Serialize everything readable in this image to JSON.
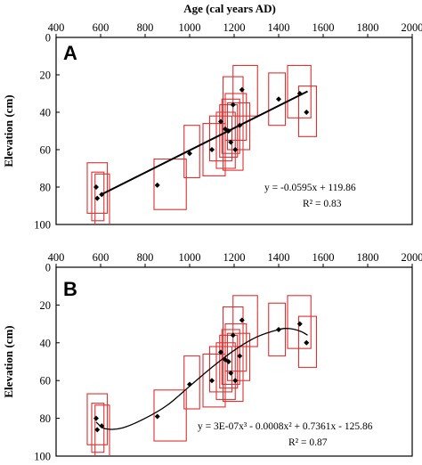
{
  "figure": {
    "top_axis_title": "Age (cal years AD)",
    "y_axis_title": "Elevation (cm)"
  },
  "chart_data": [
    {
      "type": "scatter",
      "panel_label": "A",
      "xlim": [
        400,
        2000
      ],
      "ylim": [
        0,
        100
      ],
      "y_inverted": true,
      "x_ticks": [
        "400",
        "600",
        "800",
        "1000",
        "1200",
        "1400",
        "1600",
        "1800",
        "2000"
      ],
      "y_ticks": [
        "0",
        "20",
        "40",
        "60",
        "80",
        "100"
      ],
      "x_axis_position": "top",
      "points": [
        {
          "x": 580,
          "y": 80
        },
        {
          "x": 585,
          "y": 86
        },
        {
          "x": 605,
          "y": 84
        },
        {
          "x": 855,
          "y": 79
        },
        {
          "x": 1000,
          "y": 62
        },
        {
          "x": 1100,
          "y": 60
        },
        {
          "x": 1140,
          "y": 45
        },
        {
          "x": 1160,
          "y": 49
        },
        {
          "x": 1175,
          "y": 50
        },
        {
          "x": 1185,
          "y": 56
        },
        {
          "x": 1195,
          "y": 36
        },
        {
          "x": 1205,
          "y": 60
        },
        {
          "x": 1225,
          "y": 47
        },
        {
          "x": 1235,
          "y": 28
        },
        {
          "x": 1400,
          "y": 33
        },
        {
          "x": 1495,
          "y": 30
        },
        {
          "x": 1525,
          "y": 40
        }
      ],
      "error_boxes": [
        {
          "x0": 540,
          "x1": 630,
          "y0": 67,
          "y1": 94
        },
        {
          "x0": 560,
          "x1": 615,
          "y0": 72,
          "y1": 98
        },
        {
          "x0": 575,
          "x1": 640,
          "y0": 73,
          "y1": 101
        },
        {
          "x0": 840,
          "x1": 985,
          "y0": 65,
          "y1": 92
        },
        {
          "x0": 975,
          "x1": 1045,
          "y0": 47,
          "y1": 75
        },
        {
          "x0": 1060,
          "x1": 1160,
          "y0": 46,
          "y1": 74
        },
        {
          "x0": 1090,
          "x1": 1190,
          "y0": 42,
          "y1": 66
        },
        {
          "x0": 1120,
          "x1": 1205,
          "y0": 40,
          "y1": 70
        },
        {
          "x0": 1135,
          "x1": 1215,
          "y0": 36,
          "y1": 64
        },
        {
          "x0": 1145,
          "x1": 1225,
          "y0": 33,
          "y1": 62
        },
        {
          "x0": 1150,
          "x1": 1240,
          "y0": 21,
          "y1": 71
        },
        {
          "x0": 1160,
          "x1": 1255,
          "y0": 30,
          "y1": 55
        },
        {
          "x0": 1170,
          "x1": 1270,
          "y0": 35,
          "y1": 60
        },
        {
          "x0": 1195,
          "x1": 1305,
          "y0": 15,
          "y1": 42
        },
        {
          "x0": 1355,
          "x1": 1430,
          "y0": 19,
          "y1": 47
        },
        {
          "x0": 1440,
          "x1": 1545,
          "y0": 15,
          "y1": 43
        },
        {
          "x0": 1490,
          "x1": 1570,
          "y0": 26,
          "y1": 53
        }
      ],
      "fit": {
        "type": "linear",
        "slope": -0.0595,
        "intercept": 119.86,
        "x_range": [
          600,
          1530
        ],
        "equation_label": "y = -0.0595x + 119.86",
        "r2_label": "R² = 0.83"
      }
    },
    {
      "type": "scatter",
      "panel_label": "B",
      "xlim": [
        400,
        2000
      ],
      "ylim": [
        0,
        100
      ],
      "y_inverted": true,
      "x_ticks": [
        "400",
        "600",
        "800",
        "1000",
        "1200",
        "1400",
        "1600",
        "1800",
        "2000"
      ],
      "y_ticks": [
        "0",
        "20",
        "40",
        "60",
        "80",
        "100"
      ],
      "x_axis_position": "top",
      "points": [
        {
          "x": 580,
          "y": 80
        },
        {
          "x": 585,
          "y": 86
        },
        {
          "x": 605,
          "y": 84
        },
        {
          "x": 855,
          "y": 79
        },
        {
          "x": 1000,
          "y": 62
        },
        {
          "x": 1100,
          "y": 60
        },
        {
          "x": 1140,
          "y": 45
        },
        {
          "x": 1160,
          "y": 49
        },
        {
          "x": 1175,
          "y": 50
        },
        {
          "x": 1185,
          "y": 56
        },
        {
          "x": 1195,
          "y": 36
        },
        {
          "x": 1205,
          "y": 60
        },
        {
          "x": 1225,
          "y": 47
        },
        {
          "x": 1235,
          "y": 28
        },
        {
          "x": 1400,
          "y": 33
        },
        {
          "x": 1495,
          "y": 30
        },
        {
          "x": 1525,
          "y": 40
        }
      ],
      "error_boxes": [
        {
          "x0": 540,
          "x1": 630,
          "y0": 67,
          "y1": 94
        },
        {
          "x0": 560,
          "x1": 615,
          "y0": 72,
          "y1": 98
        },
        {
          "x0": 575,
          "x1": 640,
          "y0": 73,
          "y1": 101
        },
        {
          "x0": 840,
          "x1": 985,
          "y0": 65,
          "y1": 92
        },
        {
          "x0": 975,
          "x1": 1045,
          "y0": 47,
          "y1": 75
        },
        {
          "x0": 1060,
          "x1": 1160,
          "y0": 46,
          "y1": 74
        },
        {
          "x0": 1090,
          "x1": 1190,
          "y0": 42,
          "y1": 66
        },
        {
          "x0": 1120,
          "x1": 1205,
          "y0": 40,
          "y1": 70
        },
        {
          "x0": 1135,
          "x1": 1215,
          "y0": 36,
          "y1": 64
        },
        {
          "x0": 1145,
          "x1": 1225,
          "y0": 33,
          "y1": 62
        },
        {
          "x0": 1150,
          "x1": 1240,
          "y0": 21,
          "y1": 71
        },
        {
          "x0": 1160,
          "x1": 1255,
          "y0": 30,
          "y1": 55
        },
        {
          "x0": 1170,
          "x1": 1270,
          "y0": 35,
          "y1": 60
        },
        {
          "x0": 1195,
          "x1": 1305,
          "y0": 15,
          "y1": 42
        },
        {
          "x0": 1355,
          "x1": 1430,
          "y0": 19,
          "y1": 47
        },
        {
          "x0": 1440,
          "x1": 1545,
          "y0": 15,
          "y1": 43
        },
        {
          "x0": 1490,
          "x1": 1570,
          "y0": 26,
          "y1": 53
        }
      ],
      "fit": {
        "type": "cubic",
        "curve": [
          {
            "x": 580,
            "y": 82
          },
          {
            "x": 620,
            "y": 85.5
          },
          {
            "x": 700,
            "y": 85
          },
          {
            "x": 800,
            "y": 80
          },
          {
            "x": 900,
            "y": 73
          },
          {
            "x": 1000,
            "y": 63
          },
          {
            "x": 1100,
            "y": 53
          },
          {
            "x": 1200,
            "y": 44
          },
          {
            "x": 1300,
            "y": 37
          },
          {
            "x": 1400,
            "y": 33
          },
          {
            "x": 1450,
            "y": 32.5
          },
          {
            "x": 1500,
            "y": 34
          },
          {
            "x": 1530,
            "y": 36
          }
        ],
        "equation_label": "y = 3E-07x³ - 0.0008x² + 0.7361x - 125.86",
        "r2_label": "R² = 0.87"
      }
    }
  ],
  "colors": {
    "box": "#e03030",
    "point": "#000000",
    "line": "#000000"
  }
}
